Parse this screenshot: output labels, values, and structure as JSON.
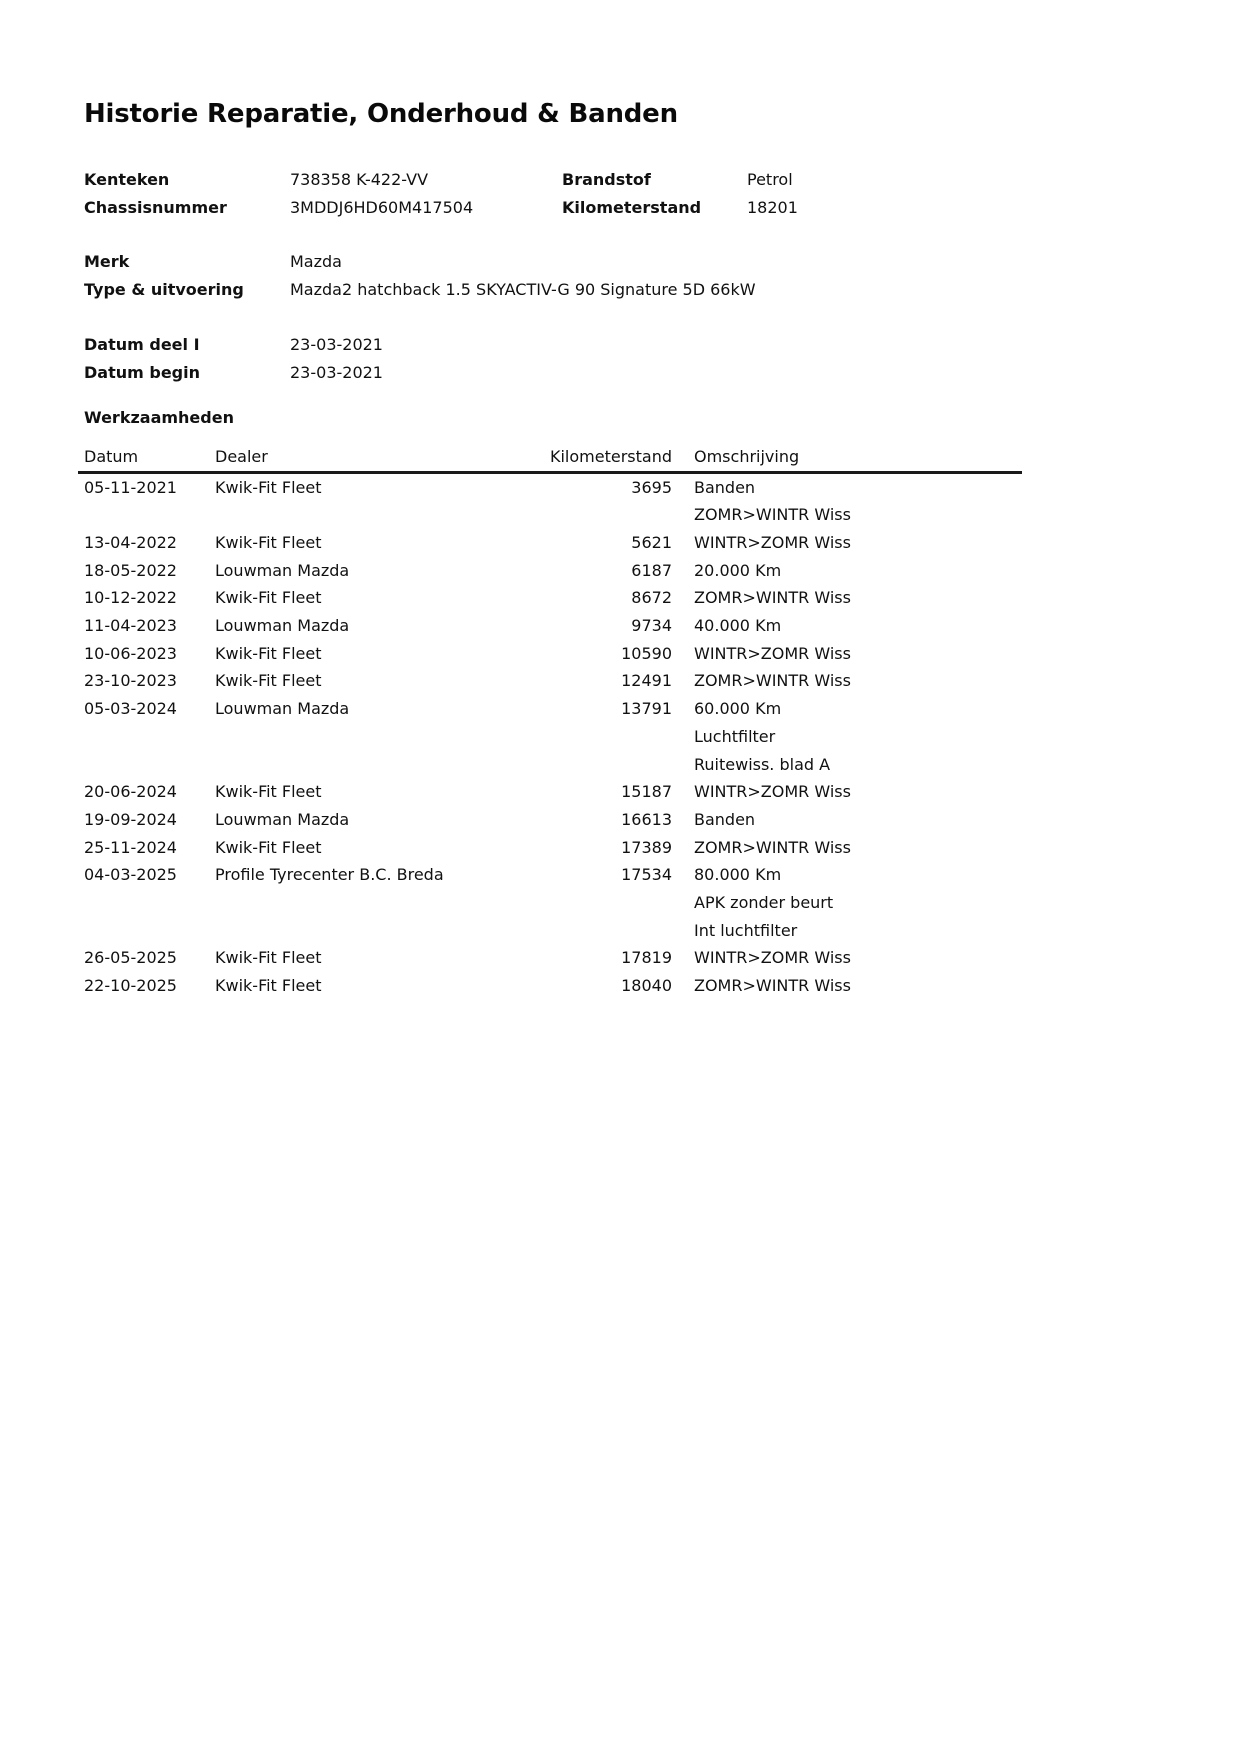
{
  "title": "Historie Reparatie, Onderhoud & Banden",
  "colors": {
    "page_background": "#ffffff",
    "text": "#111111",
    "table_rule": "#1a1a1a"
  },
  "vehicle": {
    "kenteken": {
      "label": "Kenteken",
      "value": "738358 K-422-VV"
    },
    "brandstof": {
      "label": "Brandstof",
      "value": "Petrol"
    },
    "chassisnummer": {
      "label": "Chassisnummer",
      "value": "3MDDJ6HD60M417504"
    },
    "kilometerstand": {
      "label": "Kilometerstand",
      "value": "18201"
    },
    "merk": {
      "label": "Merk",
      "value": "Mazda"
    },
    "type_uitvoering": {
      "label": "Type & uitvoering",
      "value": "Mazda2 hatchback 1.5 SKYACTIV-G 90 Signature 5D 66kW"
    },
    "datum_deel_1": {
      "label": "Datum deel I",
      "value": "23-03-2021"
    },
    "datum_begin": {
      "label": "Datum begin",
      "value": "23-03-2021"
    }
  },
  "work_section": {
    "heading": "Werkzaamheden",
    "table": {
      "headers": {
        "datum": "Datum",
        "dealer": "Dealer",
        "kilometerstand": "Kilometerstand",
        "omschrijving": "Omschrijving"
      },
      "rows": [
        {
          "date": "05-11-2021",
          "dealer": "Kwik-Fit Fleet",
          "km": "3695",
          "description": "Banden"
        },
        {
          "date": "",
          "dealer": "",
          "km": "",
          "description": "ZOMR>WINTR Wiss"
        },
        {
          "date": "13-04-2022",
          "dealer": "Kwik-Fit Fleet",
          "km": "5621",
          "description": "WINTR>ZOMR Wiss"
        },
        {
          "date": "18-05-2022",
          "dealer": "Louwman Mazda",
          "km": "6187",
          "description": "20.000 Km"
        },
        {
          "date": "10-12-2022",
          "dealer": "Kwik-Fit Fleet",
          "km": "8672",
          "description": "ZOMR>WINTR Wiss"
        },
        {
          "date": "11-04-2023",
          "dealer": "Louwman Mazda",
          "km": "9734",
          "description": "40.000 Km"
        },
        {
          "date": "10-06-2023",
          "dealer": "Kwik-Fit Fleet",
          "km": "10590",
          "description": "WINTR>ZOMR Wiss"
        },
        {
          "date": "23-10-2023",
          "dealer": "Kwik-Fit Fleet",
          "km": "12491",
          "description": "ZOMR>WINTR Wiss"
        },
        {
          "date": "05-03-2024",
          "dealer": "Louwman Mazda",
          "km": "13791",
          "description": "60.000 Km"
        },
        {
          "date": "",
          "dealer": "",
          "km": "",
          "description": "Luchtfilter"
        },
        {
          "date": "",
          "dealer": "",
          "km": "",
          "description": "Ruitewiss. blad A"
        },
        {
          "date": "20-06-2024",
          "dealer": "Kwik-Fit Fleet",
          "km": "15187",
          "description": "WINTR>ZOMR Wiss"
        },
        {
          "date": "19-09-2024",
          "dealer": "Louwman Mazda",
          "km": "16613",
          "description": "Banden"
        },
        {
          "date": "25-11-2024",
          "dealer": "Kwik-Fit Fleet",
          "km": "17389",
          "description": "ZOMR>WINTR Wiss"
        },
        {
          "date": "04-03-2025",
          "dealer": "Profile Tyrecenter B.C. Breda",
          "km": "17534",
          "description": "80.000 Km"
        },
        {
          "date": "",
          "dealer": "",
          "km": "",
          "description": "APK zonder beurt"
        },
        {
          "date": "",
          "dealer": "",
          "km": "",
          "description": "Int luchtfilter"
        },
        {
          "date": "26-05-2025",
          "dealer": "Kwik-Fit Fleet",
          "km": "17819",
          "description": "WINTR>ZOMR Wiss"
        },
        {
          "date": "22-10-2025",
          "dealer": "Kwik-Fit Fleet",
          "km": "18040",
          "description": "ZOMR>WINTR Wiss"
        }
      ]
    }
  }
}
